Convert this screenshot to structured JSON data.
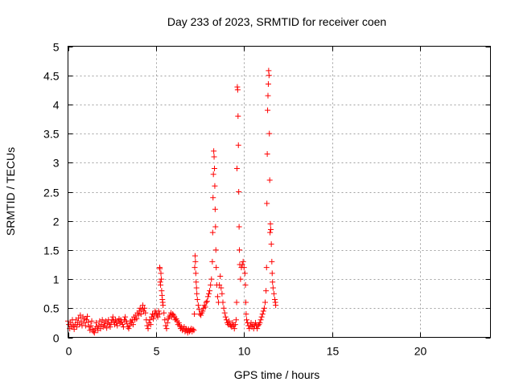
{
  "chart_data": {
    "type": "scatter",
    "title": "Day 233 of 2023, SRMTID for receiver coen",
    "xlabel": "GPS time / hours",
    "ylabel": "SRMTID / TECUs",
    "xlim": [
      0,
      24
    ],
    "ylim": [
      0,
      5
    ],
    "xticks": [
      0,
      5,
      10,
      15,
      20
    ],
    "xtick_labels": [
      "0",
      "5",
      "10",
      "15",
      "20"
    ],
    "yticks": [
      0,
      0.5,
      1,
      1.5,
      2,
      2.5,
      3,
      3.5,
      4,
      4.5,
      5
    ],
    "ytick_labels": [
      "0",
      "0.5",
      "1",
      "1.5",
      "2",
      "2.5",
      "3",
      "3.5",
      "4",
      "4.5",
      "5"
    ],
    "grid": true,
    "marker": "plus",
    "series": [
      {
        "name": "SRMTID",
        "color": "#ff0000",
        "points": [
          [
            0.0,
            0.28
          ],
          [
            0.05,
            0.22
          ],
          [
            0.1,
            0.15
          ],
          [
            0.15,
            0.25
          ],
          [
            0.2,
            0.18
          ],
          [
            0.25,
            0.3
          ],
          [
            0.3,
            0.2
          ],
          [
            0.35,
            0.14
          ],
          [
            0.4,
            0.22
          ],
          [
            0.45,
            0.3
          ],
          [
            0.5,
            0.18
          ],
          [
            0.55,
            0.25
          ],
          [
            0.6,
            0.33
          ],
          [
            0.65,
            0.22
          ],
          [
            0.7,
            0.38
          ],
          [
            0.75,
            0.28
          ],
          [
            0.8,
            0.2
          ],
          [
            0.85,
            0.35
          ],
          [
            0.9,
            0.25
          ],
          [
            0.95,
            0.32
          ],
          [
            1.0,
            0.2
          ],
          [
            1.05,
            0.3
          ],
          [
            1.1,
            0.36
          ],
          [
            1.15,
            0.26
          ],
          [
            1.2,
            0.18
          ],
          [
            1.25,
            0.12
          ],
          [
            1.3,
            0.2
          ],
          [
            1.35,
            0.28
          ],
          [
            1.4,
            0.14
          ],
          [
            1.45,
            0.1
          ],
          [
            1.5,
            0.08
          ],
          [
            1.55,
            0.15
          ],
          [
            1.6,
            0.25
          ],
          [
            1.65,
            0.18
          ],
          [
            1.7,
            0.12
          ],
          [
            1.75,
            0.2
          ],
          [
            1.8,
            0.28
          ],
          [
            1.85,
            0.15
          ],
          [
            1.9,
            0.22
          ],
          [
            1.95,
            0.3
          ],
          [
            2.0,
            0.18
          ],
          [
            2.05,
            0.25
          ],
          [
            2.1,
            0.2
          ],
          [
            2.15,
            0.28
          ],
          [
            2.2,
            0.16
          ],
          [
            2.25,
            0.24
          ],
          [
            2.3,
            0.3
          ],
          [
            2.35,
            0.22
          ],
          [
            2.4,
            0.18
          ],
          [
            2.45,
            0.25
          ],
          [
            2.5,
            0.3
          ],
          [
            2.55,
            0.35
          ],
          [
            2.6,
            0.28
          ],
          [
            2.65,
            0.22
          ],
          [
            2.7,
            0.3
          ],
          [
            2.75,
            0.25
          ],
          [
            2.8,
            0.2
          ],
          [
            2.85,
            0.28
          ],
          [
            2.9,
            0.32
          ],
          [
            2.95,
            0.24
          ],
          [
            3.0,
            0.3
          ],
          [
            3.05,
            0.26
          ],
          [
            3.1,
            0.22
          ],
          [
            3.15,
            0.18
          ],
          [
            3.2,
            0.3
          ],
          [
            3.25,
            0.35
          ],
          [
            3.3,
            0.28
          ],
          [
            3.35,
            0.24
          ],
          [
            3.4,
            0.18
          ],
          [
            3.45,
            0.15
          ],
          [
            3.5,
            0.2
          ],
          [
            3.55,
            0.28
          ],
          [
            3.6,
            0.25
          ],
          [
            3.65,
            0.3
          ],
          [
            3.7,
            0.22
          ],
          [
            3.75,
            0.35
          ],
          [
            3.8,
            0.3
          ],
          [
            3.85,
            0.38
          ],
          [
            3.9,
            0.32
          ],
          [
            3.95,
            0.42
          ],
          [
            4.0,
            0.38
          ],
          [
            4.05,
            0.45
          ],
          [
            4.1,
            0.5
          ],
          [
            4.15,
            0.4
          ],
          [
            4.2,
            0.48
          ],
          [
            4.25,
            0.55
          ],
          [
            4.3,
            0.45
          ],
          [
            4.35,
            0.5
          ],
          [
            4.4,
            0.42
          ],
          [
            4.45,
            0.3
          ],
          [
            4.5,
            0.2
          ],
          [
            4.55,
            0.15
          ],
          [
            4.6,
            0.25
          ],
          [
            4.65,
            0.3
          ],
          [
            4.7,
            0.22
          ],
          [
            4.75,
            0.35
          ],
          [
            4.8,
            0.4
          ],
          [
            4.85,
            0.32
          ],
          [
            4.9,
            0.38
          ],
          [
            4.95,
            0.45
          ],
          [
            5.0,
            0.42
          ],
          [
            5.05,
            0.38
          ],
          [
            5.1,
            0.35
          ],
          [
            5.15,
            0.45
          ],
          [
            5.2,
            0.4
          ],
          [
            5.21,
            1.2
          ],
          [
            5.22,
            1.18
          ],
          [
            5.24,
            0.95
          ],
          [
            5.26,
            0.9
          ],
          [
            5.28,
            1.1
          ],
          [
            5.3,
            1.0
          ],
          [
            5.32,
            0.8
          ],
          [
            5.34,
            0.72
          ],
          [
            5.36,
            0.65
          ],
          [
            5.38,
            0.6
          ],
          [
            5.4,
            0.55
          ],
          [
            5.45,
            0.42
          ],
          [
            5.5,
            0.3
          ],
          [
            5.55,
            0.2
          ],
          [
            5.6,
            0.15
          ],
          [
            5.65,
            0.25
          ],
          [
            5.7,
            0.32
          ],
          [
            5.75,
            0.35
          ],
          [
            5.8,
            0.38
          ],
          [
            5.85,
            0.42
          ],
          [
            5.9,
            0.35
          ],
          [
            5.95,
            0.4
          ],
          [
            6.0,
            0.38
          ],
          [
            6.05,
            0.35
          ],
          [
            6.1,
            0.3
          ],
          [
            6.15,
            0.32
          ],
          [
            6.2,
            0.28
          ],
          [
            6.25,
            0.22
          ],
          [
            6.3,
            0.25
          ],
          [
            6.35,
            0.2
          ],
          [
            6.4,
            0.15
          ],
          [
            6.45,
            0.18
          ],
          [
            6.5,
            0.12
          ],
          [
            6.55,
            0.15
          ],
          [
            6.6,
            0.18
          ],
          [
            6.65,
            0.1
          ],
          [
            6.7,
            0.15
          ],
          [
            6.75,
            0.12
          ],
          [
            6.8,
            0.08
          ],
          [
            6.85,
            0.14
          ],
          [
            6.9,
            0.1
          ],
          [
            6.95,
            0.12
          ],
          [
            7.0,
            0.15
          ],
          [
            7.05,
            0.1
          ],
          [
            7.1,
            0.14
          ],
          [
            7.15,
            0.12
          ],
          [
            7.18,
            0.4
          ],
          [
            7.2,
            1.2
          ],
          [
            7.22,
            1.4
          ],
          [
            7.24,
            1.3
          ],
          [
            7.26,
            1.1
          ],
          [
            7.28,
            0.95
          ],
          [
            7.3,
            0.85
          ],
          [
            7.32,
            0.75
          ],
          [
            7.35,
            0.65
          ],
          [
            7.4,
            0.55
          ],
          [
            7.45,
            0.48
          ],
          [
            7.5,
            0.4
          ],
          [
            7.55,
            0.38
          ],
          [
            7.6,
            0.42
          ],
          [
            7.65,
            0.45
          ],
          [
            7.7,
            0.5
          ],
          [
            7.75,
            0.55
          ],
          [
            7.8,
            0.52
          ],
          [
            7.85,
            0.6
          ],
          [
            7.9,
            0.62
          ],
          [
            7.95,
            0.7
          ],
          [
            8.0,
            0.75
          ],
          [
            8.05,
            0.8
          ],
          [
            8.1,
            0.9
          ],
          [
            8.15,
            1.0
          ],
          [
            8.2,
            1.3
          ],
          [
            8.22,
            1.8
          ],
          [
            8.24,
            2.4
          ],
          [
            8.26,
            2.8
          ],
          [
            8.28,
            3.2
          ],
          [
            8.3,
            3.1
          ],
          [
            8.32,
            2.9
          ],
          [
            8.34,
            2.6
          ],
          [
            8.36,
            2.2
          ],
          [
            8.38,
            1.9
          ],
          [
            8.4,
            1.5
          ],
          [
            8.42,
            1.2
          ],
          [
            8.45,
            0.9
          ],
          [
            8.5,
            0.7
          ],
          [
            8.55,
            0.6
          ],
          [
            8.6,
            0.9
          ],
          [
            8.65,
            1.05
          ],
          [
            8.7,
            0.85
          ],
          [
            8.75,
            0.75
          ],
          [
            8.8,
            0.6
          ],
          [
            8.85,
            0.5
          ],
          [
            8.9,
            0.42
          ],
          [
            8.95,
            0.35
          ],
          [
            9.0,
            0.3
          ],
          [
            9.05,
            0.25
          ],
          [
            9.1,
            0.22
          ],
          [
            9.15,
            0.28
          ],
          [
            9.2,
            0.22
          ],
          [
            9.25,
            0.2
          ],
          [
            9.3,
            0.18
          ],
          [
            9.35,
            0.25
          ],
          [
            9.4,
            0.2
          ],
          [
            9.45,
            0.15
          ],
          [
            9.5,
            0.22
          ],
          [
            9.55,
            0.3
          ],
          [
            9.58,
            0.6
          ],
          [
            9.6,
            2.9
          ],
          [
            9.62,
            4.3
          ],
          [
            9.64,
            4.25
          ],
          [
            9.66,
            3.8
          ],
          [
            9.68,
            3.3
          ],
          [
            9.7,
            2.5
          ],
          [
            9.72,
            1.9
          ],
          [
            9.74,
            1.5
          ],
          [
            9.76,
            1.25
          ],
          [
            9.8,
            1.0
          ],
          [
            9.85,
            1.2
          ],
          [
            9.9,
            1.25
          ],
          [
            9.95,
            1.3
          ],
          [
            10.0,
            1.2
          ],
          [
            10.05,
            1.1
          ],
          [
            10.08,
            0.9
          ],
          [
            10.1,
            0.6
          ],
          [
            10.12,
            0.4
          ],
          [
            10.15,
            0.3
          ],
          [
            10.2,
            0.25
          ],
          [
            10.25,
            0.2
          ],
          [
            10.3,
            0.15
          ],
          [
            10.35,
            0.2
          ],
          [
            10.4,
            0.25
          ],
          [
            10.45,
            0.18
          ],
          [
            10.5,
            0.22
          ],
          [
            10.55,
            0.15
          ],
          [
            10.6,
            0.2
          ],
          [
            10.65,
            0.25
          ],
          [
            10.7,
            0.2
          ],
          [
            10.75,
            0.15
          ],
          [
            10.8,
            0.2
          ],
          [
            10.85,
            0.22
          ],
          [
            10.9,
            0.25
          ],
          [
            10.95,
            0.3
          ],
          [
            11.0,
            0.35
          ],
          [
            11.05,
            0.4
          ],
          [
            11.1,
            0.45
          ],
          [
            11.15,
            0.5
          ],
          [
            11.2,
            0.6
          ],
          [
            11.25,
            0.8
          ],
          [
            11.28,
            1.2
          ],
          [
            11.3,
            2.3
          ],
          [
            11.32,
            3.15
          ],
          [
            11.34,
            3.9
          ],
          [
            11.36,
            4.15
          ],
          [
            11.38,
            4.35
          ],
          [
            11.4,
            4.58
          ],
          [
            11.42,
            4.5
          ],
          [
            11.44,
            3.5
          ],
          [
            11.46,
            2.7
          ],
          [
            11.48,
            1.8
          ],
          [
            11.5,
            1.95
          ],
          [
            11.52,
            1.85
          ],
          [
            11.55,
            1.6
          ],
          [
            11.58,
            1.3
          ],
          [
            11.6,
            1.1
          ],
          [
            11.62,
            0.95
          ],
          [
            11.65,
            0.85
          ],
          [
            11.7,
            0.75
          ],
          [
            11.75,
            0.65
          ],
          [
            11.78,
            0.6
          ],
          [
            11.8,
            0.55
          ]
        ]
      }
    ]
  }
}
